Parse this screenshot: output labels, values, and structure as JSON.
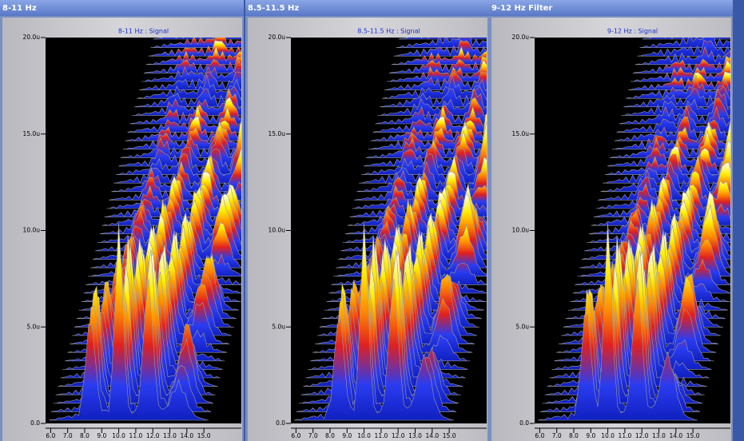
{
  "panels": [
    {
      "window_title": "8-11 Hz",
      "chart": {
        "type": "waterfall",
        "title": "8-11 Hz : Signal",
        "ylim": [
          0,
          20
        ],
        "yticks": [
          {
            "value": 0,
            "label": "0.0"
          },
          {
            "value": 5,
            "label": "5.0u"
          },
          {
            "value": 10,
            "label": "10.0u"
          },
          {
            "value": 15,
            "label": "15.0u"
          },
          {
            "value": 20,
            "label": "20.0u"
          }
        ],
        "xlim": [
          5.7,
          17.2
        ],
        "xticks": [
          {
            "value": 6,
            "label": "6.0"
          },
          {
            "value": 7,
            "label": "7.0"
          },
          {
            "value": 8,
            "label": "8.0"
          },
          {
            "value": 9,
            "label": "9.0"
          },
          {
            "value": 10,
            "label": "10.0"
          },
          {
            "value": 11,
            "label": "11.0"
          },
          {
            "value": 12,
            "label": "12.0"
          },
          {
            "value": 13,
            "label": "13.0"
          },
          {
            "value": 14,
            "label": "14.0"
          },
          {
            "value": 15,
            "label": "15.0"
          }
        ]
      }
    },
    {
      "window_title": "8.5-11.5 Hz",
      "chart": {
        "type": "waterfall",
        "title": "8.5-11.5 Hz : Signal",
        "ylim": [
          0,
          20
        ],
        "yticks": [
          {
            "value": 0,
            "label": "0.0"
          },
          {
            "value": 5,
            "label": "5.0u"
          },
          {
            "value": 10,
            "label": "10.0u"
          },
          {
            "value": 15,
            "label": "15.0u"
          },
          {
            "value": 20,
            "label": "20.0u"
          }
        ],
        "xlim": [
          5.7,
          17.2
        ],
        "xticks": [
          {
            "value": 6,
            "label": "6.0"
          },
          {
            "value": 7,
            "label": "7.0"
          },
          {
            "value": 8,
            "label": "8.0"
          },
          {
            "value": 9,
            "label": "9.0"
          },
          {
            "value": 10,
            "label": "10.0"
          },
          {
            "value": 11,
            "label": "11.0"
          },
          {
            "value": 12,
            "label": "12.0"
          },
          {
            "value": 13,
            "label": "13.0"
          },
          {
            "value": 14,
            "label": "14.0"
          },
          {
            "value": 15,
            "label": "15.0"
          }
        ]
      }
    },
    {
      "window_title": "9-12 Hz Filter",
      "chart": {
        "type": "waterfall",
        "title": "9-12 Hz : Signal",
        "ylim": [
          0,
          20
        ],
        "yticks": [
          {
            "value": 0,
            "label": "0.0"
          },
          {
            "value": 5,
            "label": "5.0u"
          },
          {
            "value": 10,
            "label": "10.0u"
          },
          {
            "value": 15,
            "label": "15.0u"
          },
          {
            "value": 20,
            "label": "20.0u"
          }
        ],
        "xlim": [
          5.7,
          17.2
        ],
        "xticks": [
          {
            "value": 6,
            "label": "6.0"
          },
          {
            "value": 7,
            "label": "7.0"
          },
          {
            "value": 8,
            "label": "8.0"
          },
          {
            "value": 9,
            "label": "9.0"
          },
          {
            "value": 10,
            "label": "10.0"
          },
          {
            "value": 11,
            "label": "11.0"
          },
          {
            "value": 12,
            "label": "12.0"
          },
          {
            "value": 13,
            "label": "13.0"
          },
          {
            "value": 14,
            "label": "14.0"
          },
          {
            "value": 15,
            "label": "15.0"
          }
        ]
      }
    }
  ]
}
